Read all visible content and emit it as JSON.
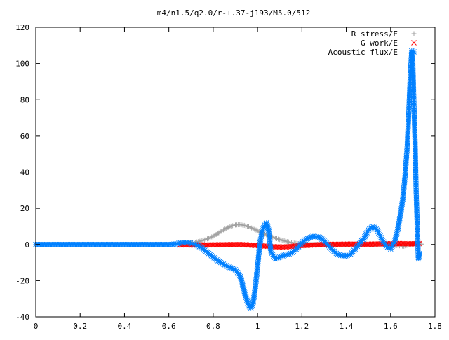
{
  "chart_data": {
    "type": "scatter",
    "title": "m4/n1.5/q2.0/r-+.37-j193/M5.0/512",
    "xlabel": "",
    "ylabel": "",
    "xlim": [
      0,
      1.8
    ],
    "ylim": [
      -40,
      120
    ],
    "xticks": [
      0,
      0.2,
      0.4,
      0.6,
      0.8,
      1,
      1.2,
      1.4,
      1.6,
      1.8
    ],
    "yticks": [
      -40,
      -20,
      0,
      20,
      40,
      60,
      80,
      100,
      120
    ],
    "grid": false,
    "legend_position": "top-right",
    "series": [
      {
        "name": "R stress/E",
        "marker": "plus",
        "color": "#a0a0a0",
        "x": [
          0.65,
          0.68,
          0.7,
          0.72,
          0.74,
          0.76,
          0.78,
          0.8,
          0.82,
          0.84,
          0.86,
          0.88,
          0.9,
          0.92,
          0.94,
          0.96,
          0.98,
          1.0,
          1.02,
          1.04,
          1.06,
          1.08,
          1.1,
          1.12,
          1.14,
          1.16,
          1.18,
          1.2,
          1.22,
          1.24,
          1.26,
          1.28,
          1.3,
          1.34,
          1.38,
          1.42,
          1.46,
          1.5,
          1.54,
          1.58,
          1.62,
          1.66,
          1.7,
          1.74
        ],
        "y": [
          0.3,
          0.5,
          0.8,
          1.2,
          1.8,
          2.5,
          3.4,
          4.6,
          6.0,
          7.6,
          9.0,
          10.2,
          10.8,
          11.0,
          10.6,
          9.8,
          8.8,
          7.6,
          6.4,
          5.4,
          4.4,
          3.5,
          2.7,
          2.0,
          1.4,
          0.9,
          0.5,
          0.2,
          0.1,
          0.0,
          0.0,
          -0.1,
          -0.1,
          -0.2,
          -0.2,
          -0.1,
          -0.1,
          -0.2,
          -0.3,
          -0.2,
          -0.5,
          -1.0,
          0.5,
          0.2
        ]
      },
      {
        "name": "G work/E",
        "marker": "cross",
        "color": "#ff0000",
        "x": [
          0.65,
          0.68,
          0.71,
          0.74,
          0.77,
          0.8,
          0.83,
          0.86,
          0.89,
          0.92,
          0.95,
          0.98,
          1.01,
          1.04,
          1.07,
          1.1,
          1.13,
          1.16,
          1.19,
          1.22,
          1.25,
          1.28,
          1.31,
          1.34,
          1.37,
          1.4,
          1.43,
          1.46,
          1.49,
          1.52,
          1.55,
          1.58,
          1.61,
          1.64,
          1.67,
          1.7,
          1.73
        ],
        "y": [
          -0.3,
          -0.2,
          -0.3,
          -0.2,
          -0.3,
          -0.2,
          -0.2,
          -0.1,
          -0.1,
          0.0,
          -0.2,
          -0.4,
          -0.7,
          -1.0,
          -1.2,
          -1.4,
          -1.3,
          -1.0,
          -0.7,
          -0.5,
          -0.3,
          -0.1,
          0.0,
          0.1,
          0.1,
          0.2,
          0.2,
          0.1,
          0.1,
          0.2,
          0.3,
          0.4,
          0.3,
          0.5,
          0.4,
          0.3,
          0.5
        ]
      },
      {
        "name": "Acoustic flux/E",
        "marker": "star",
        "color": "#0080ff",
        "x": [
          0.0,
          0.05,
          0.1,
          0.15,
          0.2,
          0.25,
          0.3,
          0.35,
          0.4,
          0.45,
          0.5,
          0.55,
          0.6,
          0.63,
          0.66,
          0.69,
          0.72,
          0.75,
          0.78,
          0.81,
          0.84,
          0.87,
          0.9,
          0.92,
          0.93,
          0.94,
          0.95,
          0.96,
          0.97,
          0.98,
          0.99,
          1.0,
          1.01,
          1.02,
          1.03,
          1.04,
          1.05,
          1.06,
          1.08,
          1.1,
          1.12,
          1.15,
          1.18,
          1.2,
          1.22,
          1.25,
          1.28,
          1.3,
          1.33,
          1.36,
          1.39,
          1.42,
          1.45,
          1.48,
          1.5,
          1.52,
          1.54,
          1.56,
          1.58,
          1.6,
          1.62,
          1.635,
          1.645,
          1.655,
          1.665,
          1.675,
          1.68,
          1.685,
          1.69,
          1.695,
          1.7,
          1.705,
          1.71,
          1.715,
          1.72,
          1.725,
          1.73
        ],
        "y": [
          0,
          0,
          0,
          0,
          0,
          0,
          0,
          0,
          0,
          0,
          0,
          0,
          0,
          0.3,
          1.0,
          1.0,
          0.0,
          -2.0,
          -5.0,
          -8.0,
          -10.5,
          -12.5,
          -14.0,
          -17.0,
          -21.0,
          -26.0,
          -30.0,
          -34.0,
          -35.0,
          -32.0,
          -24.0,
          -12.0,
          0.0,
          7.0,
          10.0,
          12.0,
          8.0,
          -4.0,
          -8.0,
          -7.0,
          -6.0,
          -5.0,
          -2.0,
          1.0,
          3.0,
          4.5,
          4.0,
          2.0,
          -2.0,
          -5.5,
          -6.5,
          -5.5,
          -1.0,
          3.5,
          8.0,
          10.0,
          8.0,
          3.0,
          -1.0,
          -2.5,
          2.0,
          10.0,
          17.0,
          25.0,
          38.0,
          54.0,
          68.0,
          82.0,
          96.0,
          107.0,
          100.0,
          78.0,
          58.0,
          30.0,
          11.0,
          -8.0,
          -5.0
        ]
      }
    ]
  }
}
